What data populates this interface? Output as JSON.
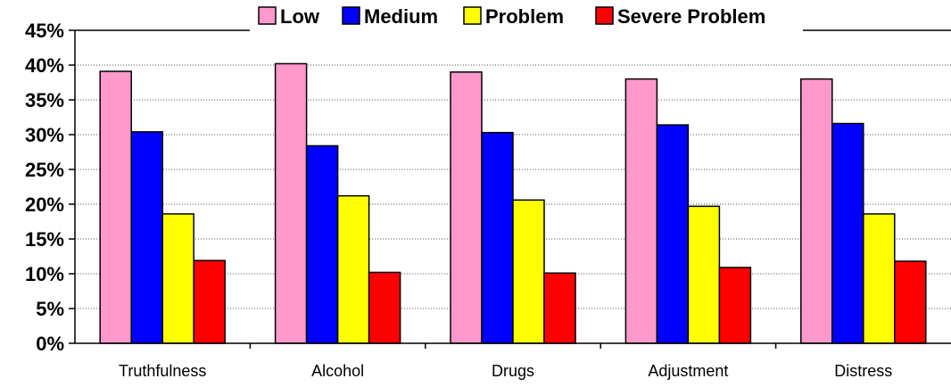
{
  "chart_data": {
    "type": "bar",
    "title": "",
    "xlabel": "",
    "ylabel": "",
    "ylim": [
      0,
      45
    ],
    "y_tick_values": [
      0,
      5,
      10,
      15,
      20,
      25,
      30,
      35,
      40,
      45
    ],
    "y_tick_labels": [
      "0%",
      "5%",
      "10%",
      "15%",
      "20%",
      "25%",
      "30%",
      "35%",
      "40%",
      "45%"
    ],
    "grid": "horizontal dotted",
    "legend_position": "top",
    "categories": [
      "Truthfulness",
      "Alcohol",
      "Drugs",
      "Adjustment",
      "Distress"
    ],
    "series": [
      {
        "name": "Low",
        "color": "#ff99cc",
        "values": [
          39.1,
          40.2,
          39.0,
          38.0,
          38.0
        ]
      },
      {
        "name": "Medium",
        "color": "#0000ff",
        "values": [
          30.4,
          28.4,
          30.3,
          31.4,
          31.6
        ]
      },
      {
        "name": "Problem",
        "color": "#ffff00",
        "values": [
          18.6,
          21.2,
          20.6,
          19.7,
          18.6
        ]
      },
      {
        "name": "Severe Problem",
        "color": "#ff0000",
        "values": [
          11.9,
          10.2,
          10.1,
          10.9,
          11.8
        ]
      }
    ]
  }
}
